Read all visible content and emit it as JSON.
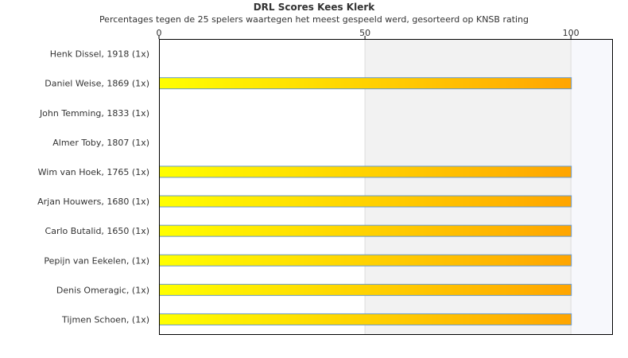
{
  "chart_data": {
    "type": "bar",
    "orientation": "horizontal",
    "title": "DRL Scores Kees Klerk",
    "subtitle": "Percentages tegen de 25 spelers waartegen het meest gespeeld werd, gesorteerd op KNSB rating",
    "xlabel": "",
    "ylabel": "",
    "xlim": [
      0,
      110
    ],
    "xticks": [
      0,
      50,
      100
    ],
    "grid": true,
    "categories": [
      "Henk Dissel, 1918 (1x)",
      "Daniel Weise, 1869 (1x)",
      "John Temming, 1833 (1x)",
      "Almer Toby, 1807 (1x)",
      "Wim van Hoek, 1765 (1x)",
      "Arjan Houwers, 1680 (1x)",
      "Carlo Butalid, 1650 (1x)",
      "Pepijn van Eekelen,  (1x)",
      "Denis Omeragic,  (1x)",
      "Tijmen Schoen,  (1x)"
    ],
    "values": [
      0,
      100,
      0,
      0,
      100,
      100,
      100,
      100,
      100,
      100
    ],
    "colors": {
      "bar_gradient_start": "#ffff00",
      "bar_gradient_end": "#ffa500",
      "bar_stroke": "#6699cc",
      "band_50_100": "#f2f2f2",
      "band_100_110": "#f7f8fc",
      "axis": "#000000",
      "gridline": "#dddddd"
    }
  }
}
